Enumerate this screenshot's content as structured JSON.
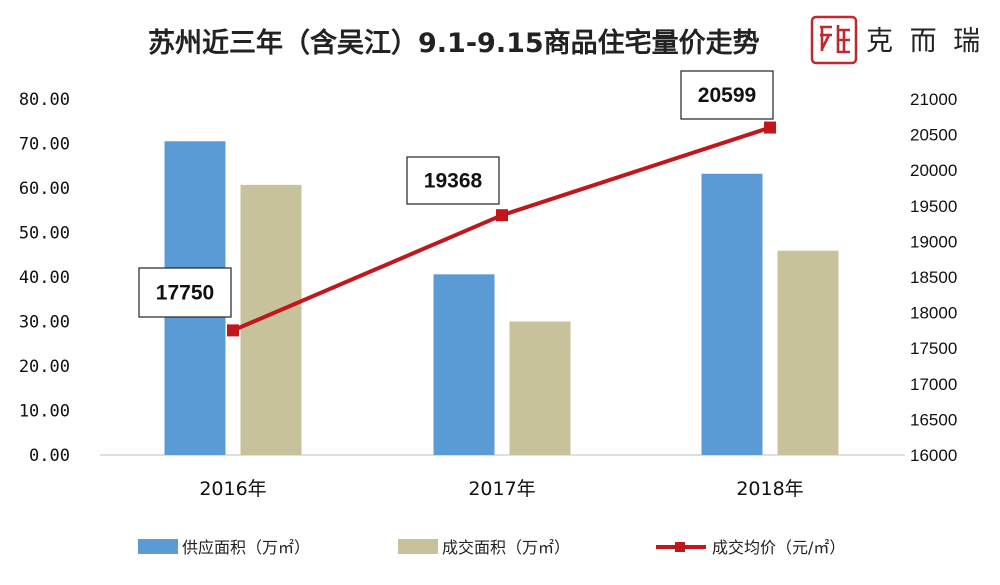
{
  "brand": {
    "name": "克 而 瑞",
    "seal_color": "#c0282d"
  },
  "chart_data": {
    "type": "bar",
    "title": "苏州近三年（含吴江）9.1-9.15商品住宅量价走势",
    "categories": [
      "2016年",
      "2017年",
      "2018年"
    ],
    "y_left": {
      "ylim": [
        0,
        80
      ],
      "ticks": [
        "0.00",
        "10.00",
        "20.00",
        "30.00",
        "40.00",
        "50.00",
        "60.00",
        "70.00",
        "80.00"
      ]
    },
    "y_right": {
      "ylim": [
        16000,
        21000
      ],
      "ticks": [
        "16000",
        "16500",
        "17000",
        "17500",
        "18000",
        "18500",
        "19000",
        "19500",
        "20000",
        "20500",
        "21000"
      ]
    },
    "series": [
      {
        "name": "供应面积（万㎡）",
        "type": "bar",
        "axis": "left",
        "color": "#5b9bd5",
        "values": [
          70.5,
          40.6,
          63.2
        ]
      },
      {
        "name": "成交面积（万㎡）",
        "type": "bar",
        "axis": "left",
        "color": "#c8c29c",
        "values": [
          60.7,
          30.0,
          45.9
        ]
      },
      {
        "name": "成交均价（元/㎡）",
        "type": "line",
        "axis": "right",
        "color": "#c0161c",
        "values": [
          17750,
          19368,
          20599
        ],
        "labels": [
          "17750",
          "19368",
          "20599"
        ]
      }
    ],
    "legend_position": "bottom",
    "grid": false
  }
}
